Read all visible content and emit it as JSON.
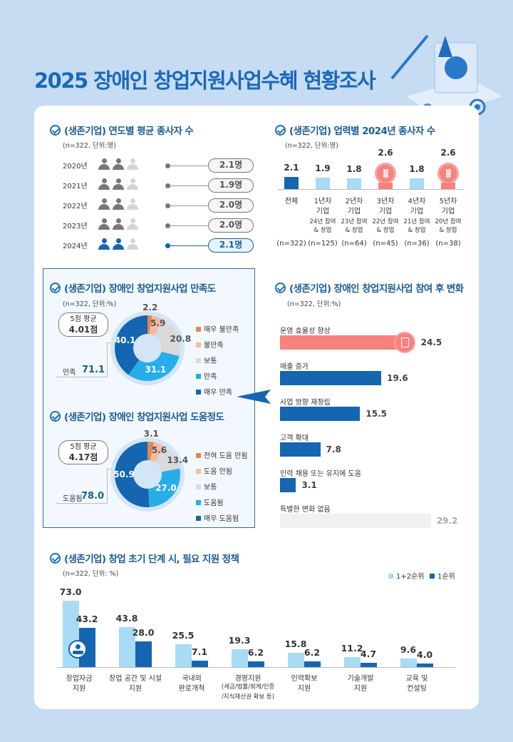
{
  "title": "2025 장애인 창업지원사업수혜 현황조사",
  "colors": {
    "primary": "#1565b0",
    "light": "#a8dbf5",
    "highlight": "#f7827e",
    "gray": "#c8c8c8"
  },
  "chart_data": [
    {
      "type": "table",
      "title": "(생존기업) 연도별 평균 종사자 수",
      "note": "(n=322, 단위:명)",
      "categories": [
        "2020년",
        "2021년",
        "2022년",
        "2023년",
        "2024년"
      ],
      "values": [
        2.1,
        1.9,
        2.0,
        2.0,
        2.1
      ],
      "labels": [
        "2.1명",
        "1.9명",
        "2.0명",
        "2.0명",
        "2.1명"
      ]
    },
    {
      "type": "bar",
      "title": "(생존기업) 업력별 2024년 종사자 수",
      "note": "(n=322, 단위:명)",
      "categories": [
        {
          "name": "전체",
          "sub1": "",
          "sub2": "",
          "n": "(n=322)"
        },
        {
          "name": "1년차",
          "name2": "기업",
          "sub1": "24년 참여",
          "sub2": "& 창업",
          "n": "(n=125)"
        },
        {
          "name": "2년차",
          "name2": "기업",
          "sub1": "23년 참여",
          "sub2": "& 창업",
          "n": "(n=64)"
        },
        {
          "name": "3년차",
          "name2": "기업",
          "sub1": "22년 참여",
          "sub2": "& 창업",
          "n": "(n=45)"
        },
        {
          "name": "4년차",
          "name2": "기업",
          "sub1": "21년 참여",
          "sub2": "& 창업",
          "n": "(n=36)"
        },
        {
          "name": "5년차",
          "name2": "기업",
          "sub1": "20년 참여",
          "sub2": "& 창업",
          "n": "(n=38)"
        }
      ],
      "values": [
        2.1,
        1.9,
        1.8,
        2.6,
        1.8,
        2.6
      ],
      "labels": [
        "2.1",
        "1.9",
        "1.8",
        "2.6",
        "1.8",
        "2.6"
      ]
    },
    {
      "type": "pie",
      "title": "(생존기업) 장애인 창업지원사업 만족도",
      "note": "(n=322, 단위:%)",
      "avg_label": "5점 평균",
      "avg_value": "4.01점",
      "sum_label": "만족",
      "sum_value": "71.1",
      "slices": [
        {
          "name": "매우 불만족",
          "value": 2.2,
          "label": "2.2",
          "color": "#e0874f"
        },
        {
          "name": "불만족",
          "value": 5.9,
          "label": "5.9",
          "color": "#f3bca3"
        },
        {
          "name": "보통",
          "value": 20.8,
          "label": "20.8",
          "color": "#dadada"
        },
        {
          "name": "만족",
          "value": 31.1,
          "label": "31.1",
          "color": "#27aee8"
        },
        {
          "name": "매우 만족",
          "value": 40.1,
          "label": "40.1",
          "color": "#1565b0"
        }
      ]
    },
    {
      "type": "pie",
      "title": "(생존기업) 장애인 창업지원사업 도움정도",
      "avg_label": "5점 평균",
      "avg_value": "4.17점",
      "sum_label": "도움됨",
      "sum_value": "78.0",
      "slices": [
        {
          "name": "전혀 도움 안됨",
          "value": 3.1,
          "label": "3.1",
          "color": "#e0874f"
        },
        {
          "name": "도움 안됨",
          "value": 5.6,
          "label": "5.6",
          "color": "#f3bca3"
        },
        {
          "name": "보통",
          "value": 13.4,
          "label": "13.4",
          "color": "#dadada"
        },
        {
          "name": "도움됨",
          "value": 27.0,
          "label": "27.0",
          "color": "#27aee8"
        },
        {
          "name": "매우 도움됨",
          "value": 50.9,
          "label": "50.9",
          "color": "#1565b0"
        }
      ]
    },
    {
      "type": "bar",
      "orientation": "horizontal",
      "title": "(생존기업) 장애인 창업지원사업 참여 후 변화",
      "note": "(n=322, 단위:%)",
      "categories": [
        "운영 효율성 향상",
        "매출 증가",
        "사업 방향 재정립",
        "고객 확대",
        "인력 채용 또는 유지에 도움",
        "특별한 변화 없음"
      ],
      "values": [
        24.5,
        19.6,
        15.5,
        7.8,
        3.1,
        29.2
      ],
      "labels": [
        "24.5",
        "19.6",
        "15.5",
        "7.8",
        "3.1",
        "29.2"
      ]
    },
    {
      "type": "bar",
      "title": "(생존기업) 창업 초기 단계 시, 필요 지원 정책",
      "note": "(n=322, 단위: %)",
      "legend_position": "top-right",
      "categories": [
        [
          "창업자금",
          "지원",
          ""
        ],
        [
          "창업 공간 및 시설",
          "지원",
          ""
        ],
        [
          "국내외",
          "판로개척",
          ""
        ],
        [
          "경영지원",
          "(세금/법률/회계/인증",
          "/지식재산권 확보 등)"
        ],
        [
          "인력확보",
          "지원",
          ""
        ],
        [
          "기술개발",
          "지원",
          ""
        ],
        [
          "교육 및",
          "컨설팅",
          ""
        ]
      ],
      "series": [
        {
          "name": "1+2순위",
          "values": [
            73.0,
            43.8,
            25.5,
            19.3,
            15.8,
            11.2,
            9.6
          ],
          "labels": [
            "73.0",
            "43.8",
            "25.5",
            "19.3",
            "15.8",
            "11.2",
            "9.6"
          ],
          "color": "#a8dbf5"
        },
        {
          "name": "1순위",
          "values": [
            43.2,
            28.0,
            7.1,
            6.2,
            6.2,
            4.7,
            4.0
          ],
          "labels": [
            "43.2",
            "28.0",
            "7.1",
            "6.2",
            "6.2",
            "4.7",
            "4.0"
          ],
          "color": "#1565b0"
        }
      ]
    }
  ]
}
